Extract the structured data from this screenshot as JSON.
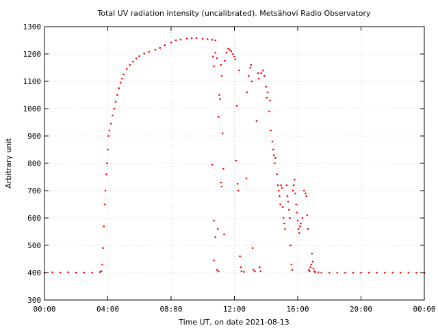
{
  "chart_data": {
    "type": "scatter",
    "title": "Total UV radiation intensity (uncalibrated). Metsähovi Radio Observatory",
    "xlabel": "Time UT, on date 2021-08-13",
    "ylabel": "Arbitrary unit",
    "xlim": [
      0,
      24
    ],
    "ylim": [
      300,
      1300
    ],
    "x_ticks": [
      0,
      4,
      8,
      12,
      16,
      20,
      24
    ],
    "x_tick_labels": [
      "00:00",
      "04:00",
      "08:00",
      "12:00",
      "16:00",
      "20:00",
      "00:00"
    ],
    "y_ticks": [
      300,
      400,
      500,
      600,
      700,
      800,
      900,
      1000,
      1100,
      1200,
      1300
    ],
    "y_tick_labels": [
      "300",
      "400",
      "500",
      "600",
      "700",
      "800",
      "900",
      "1000",
      "1100",
      "1200",
      "1300"
    ],
    "grid": true,
    "marker_color": "#ff0000",
    "series": [
      {
        "x_unit": "hours UT",
        "points": [
          [
            0.0,
            400
          ],
          [
            0.5,
            401
          ],
          [
            1.0,
            400
          ],
          [
            1.5,
            401
          ],
          [
            2.0,
            400
          ],
          [
            2.5,
            400
          ],
          [
            3.0,
            400
          ],
          [
            3.5,
            402
          ],
          [
            3.6,
            405
          ],
          [
            3.65,
            430
          ],
          [
            3.7,
            490
          ],
          [
            3.75,
            570
          ],
          [
            3.8,
            650
          ],
          [
            3.85,
            700
          ],
          [
            3.9,
            760
          ],
          [
            3.95,
            800
          ],
          [
            4.0,
            850
          ],
          [
            4.05,
            900
          ],
          [
            4.1,
            920
          ],
          [
            4.2,
            945
          ],
          [
            4.3,
            975
          ],
          [
            4.4,
            1000
          ],
          [
            4.5,
            1025
          ],
          [
            4.6,
            1050
          ],
          [
            4.7,
            1075
          ],
          [
            4.8,
            1095
          ],
          [
            4.9,
            1110
          ],
          [
            5.0,
            1125
          ],
          [
            5.2,
            1145
          ],
          [
            5.4,
            1160
          ],
          [
            5.6,
            1172
          ],
          [
            5.8,
            1183
          ],
          [
            6.0,
            1192
          ],
          [
            6.3,
            1202
          ],
          [
            6.6,
            1208
          ],
          [
            7.0,
            1215
          ],
          [
            7.3,
            1222
          ],
          [
            7.6,
            1232
          ],
          [
            8.0,
            1242
          ],
          [
            8.3,
            1250
          ],
          [
            8.6,
            1253
          ],
          [
            9.0,
            1256
          ],
          [
            9.3,
            1258
          ],
          [
            9.6,
            1258
          ],
          [
            10.0,
            1256
          ],
          [
            10.3,
            1254
          ],
          [
            10.6,
            1252
          ],
          [
            10.8,
            1250
          ],
          [
            10.65,
            1190
          ],
          [
            10.7,
            1155
          ],
          [
            10.8,
            1205
          ],
          [
            10.9,
            1185
          ],
          [
            10.6,
            795
          ],
          [
            10.7,
            590
          ],
          [
            10.8,
            530
          ],
          [
            10.95,
            560
          ],
          [
            10.9,
            410
          ],
          [
            11.0,
            405
          ],
          [
            10.7,
            445
          ],
          [
            11.0,
            970
          ],
          [
            11.05,
            1050
          ],
          [
            11.1,
            1035
          ],
          [
            11.15,
            1160
          ],
          [
            11.2,
            1120
          ],
          [
            11.25,
            910
          ],
          [
            11.3,
            780
          ],
          [
            11.15,
            730
          ],
          [
            11.2,
            715
          ],
          [
            11.35,
            540
          ],
          [
            11.4,
            1175
          ],
          [
            11.5,
            1205
          ],
          [
            11.6,
            1220
          ],
          [
            11.7,
            1215
          ],
          [
            11.8,
            1210
          ],
          [
            11.9,
            1200
          ],
          [
            12.0,
            1190
          ],
          [
            12.05,
            1180
          ],
          [
            12.1,
            810
          ],
          [
            12.15,
            1010
          ],
          [
            12.2,
            725
          ],
          [
            12.25,
            700
          ],
          [
            12.3,
            1140
          ],
          [
            12.35,
            460
          ],
          [
            12.4,
            420
          ],
          [
            12.45,
            405
          ],
          [
            12.6,
            403
          ],
          [
            12.75,
            745
          ],
          [
            12.8,
            1060
          ],
          [
            12.9,
            1120
          ],
          [
            13.0,
            1150
          ],
          [
            13.05,
            1160
          ],
          [
            13.1,
            1100
          ],
          [
            13.15,
            490
          ],
          [
            13.2,
            410
          ],
          [
            13.3,
            405
          ],
          [
            13.4,
            955
          ],
          [
            13.5,
            1130
          ],
          [
            13.55,
            1110
          ],
          [
            13.6,
            420
          ],
          [
            13.65,
            405
          ],
          [
            13.7,
            1130
          ],
          [
            13.8,
            1140
          ],
          [
            13.9,
            1120
          ],
          [
            14.0,
            1080
          ],
          [
            14.05,
            1040
          ],
          [
            14.1,
            1060
          ],
          [
            14.2,
            990
          ],
          [
            14.25,
            1030
          ],
          [
            14.3,
            920
          ],
          [
            14.4,
            880
          ],
          [
            14.45,
            850
          ],
          [
            14.5,
            830
          ],
          [
            14.55,
            800
          ],
          [
            14.6,
            820
          ],
          [
            14.7,
            760
          ],
          [
            14.75,
            720
          ],
          [
            14.8,
            700
          ],
          [
            14.85,
            680
          ],
          [
            14.9,
            650
          ],
          [
            14.95,
            720
          ],
          [
            15.0,
            710
          ],
          [
            15.05,
            640
          ],
          [
            15.1,
            600
          ],
          [
            15.15,
            580
          ],
          [
            15.2,
            560
          ],
          [
            15.3,
            720
          ],
          [
            15.35,
            680
          ],
          [
            15.4,
            660
          ],
          [
            15.45,
            630
          ],
          [
            15.5,
            600
          ],
          [
            15.55,
            500
          ],
          [
            15.6,
            430
          ],
          [
            15.65,
            410
          ],
          [
            15.7,
            700
          ],
          [
            15.75,
            720
          ],
          [
            15.8,
            740
          ],
          [
            15.85,
            690
          ],
          [
            15.9,
            650
          ],
          [
            15.95,
            620
          ],
          [
            16.0,
            590
          ],
          [
            16.05,
            560
          ],
          [
            16.1,
            545
          ],
          [
            16.15,
            570
          ],
          [
            16.2,
            580
          ],
          [
            16.3,
            600
          ],
          [
            16.4,
            700
          ],
          [
            16.5,
            690
          ],
          [
            16.55,
            680
          ],
          [
            16.6,
            610
          ],
          [
            16.65,
            560
          ],
          [
            16.7,
            410
          ],
          [
            16.75,
            405
          ],
          [
            16.8,
            420
          ],
          [
            16.85,
            430
          ],
          [
            16.9,
            470
          ],
          [
            16.95,
            440
          ],
          [
            17.0,
            415
          ],
          [
            17.05,
            405
          ],
          [
            17.1,
            402
          ],
          [
            17.3,
            401
          ],
          [
            17.5,
            400
          ],
          [
            18.0,
            400
          ],
          [
            18.5,
            400
          ],
          [
            19.0,
            400
          ],
          [
            19.5,
            400
          ],
          [
            20.0,
            400
          ],
          [
            20.5,
            400
          ],
          [
            21.0,
            400
          ],
          [
            21.5,
            400
          ],
          [
            22.0,
            400
          ],
          [
            22.5,
            400
          ],
          [
            23.0,
            400
          ],
          [
            23.5,
            400
          ],
          [
            24.0,
            400
          ]
        ]
      }
    ]
  }
}
